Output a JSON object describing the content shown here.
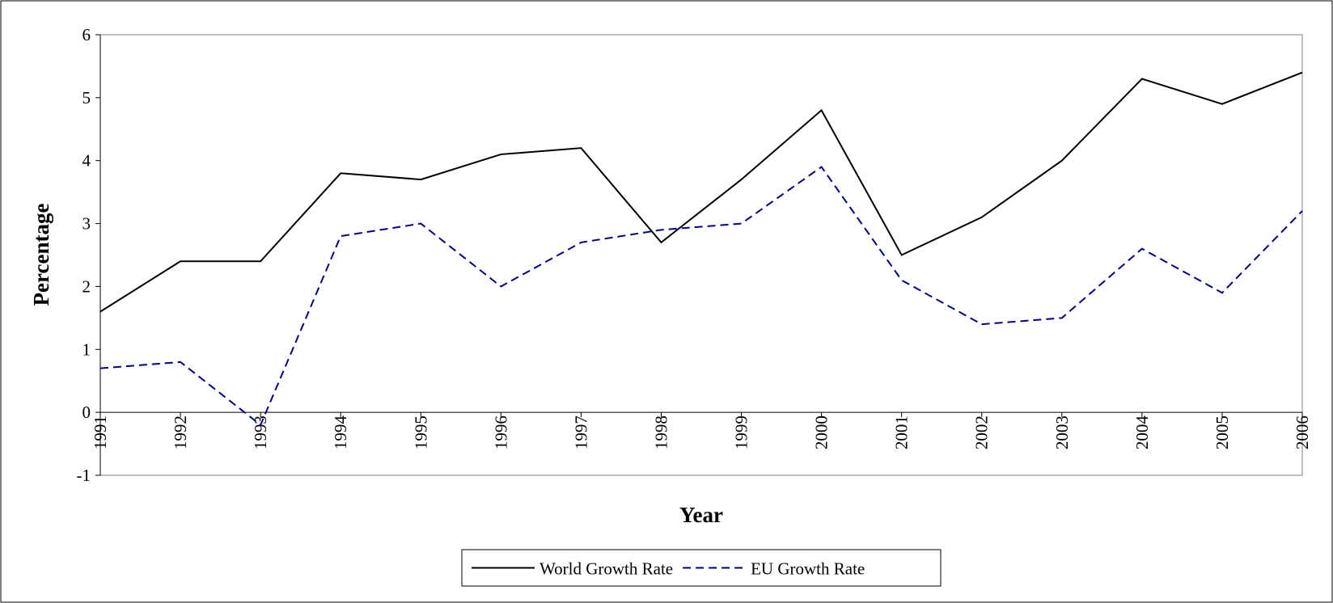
{
  "chart_data": {
    "type": "line",
    "x_label": "Year",
    "y_label": "Percentage",
    "x": [
      1991,
      1992,
      1993,
      1994,
      1995,
      1996,
      1997,
      1998,
      1999,
      2000,
      2001,
      2002,
      2003,
      2004,
      2005,
      2006
    ],
    "series": [
      {
        "name": "World Growth Rate",
        "color": "#000000",
        "dash": "solid",
        "values": [
          1.6,
          2.4,
          2.4,
          3.8,
          3.7,
          4.1,
          4.2,
          2.7,
          3.7,
          4.8,
          2.5,
          3.1,
          4.0,
          5.3,
          4.9,
          5.4
        ]
      },
      {
        "name": "EU Growth Rate",
        "color": "#000080",
        "dash": "dashed",
        "values": [
          0.7,
          0.8,
          -0.2,
          2.8,
          3.0,
          2.0,
          2.7,
          2.9,
          3.0,
          3.9,
          2.1,
          1.4,
          1.5,
          2.6,
          1.9,
          3.2
        ]
      }
    ],
    "xlim": [
      1991,
      2006
    ],
    "xticks": [
      1991,
      1992,
      1993,
      1994,
      1995,
      1996,
      1997,
      1998,
      1999,
      2000,
      2001,
      2002,
      2003,
      2004,
      2005,
      2006
    ],
    "ylim": [
      -1,
      6
    ],
    "yticks": [
      -1,
      0,
      1,
      2,
      3,
      4,
      5,
      6
    ],
    "legend": "bottom"
  }
}
